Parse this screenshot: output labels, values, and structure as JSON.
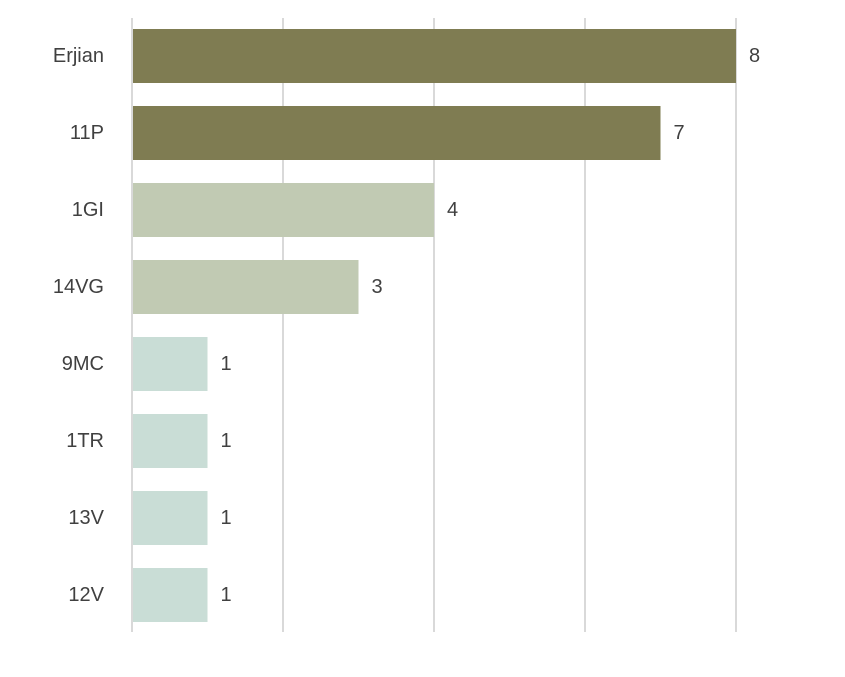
{
  "chart_data": {
    "type": "bar",
    "orientation": "horizontal",
    "categories": [
      "Erjian",
      "11P",
      "1GI",
      "14VG",
      "9MC",
      "1TR",
      "13V",
      "12V"
    ],
    "values": [
      8,
      7,
      4,
      3,
      1,
      1,
      1,
      1
    ],
    "bar_colors": [
      "#7f7c52",
      "#7f7c52",
      "#c1cab3",
      "#c1cab3",
      "#c9ddd6",
      "#c9ddd6",
      "#c9ddd6",
      "#c9ddd6"
    ],
    "title": "",
    "xlabel": "",
    "ylabel": "",
    "xlim": [
      0,
      8
    ],
    "gridlines": [
      0,
      2,
      4,
      6,
      8
    ],
    "grid": true,
    "legend": "none",
    "data_labels": true
  }
}
